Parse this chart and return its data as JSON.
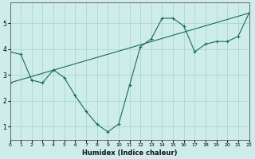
{
  "xlabel": "Humidex (Indice chaleur)",
  "bg_color": "#ceecea",
  "line_color": "#1a6b5a",
  "grid_color": "#aad8d2",
  "line1_x": [
    0,
    1,
    2,
    3,
    4,
    5,
    6,
    7,
    8,
    9,
    10,
    11,
    12,
    13,
    14,
    15,
    16,
    17,
    18,
    19,
    20,
    21,
    22
  ],
  "line1_y": [
    3.9,
    3.8,
    2.8,
    2.7,
    3.2,
    2.9,
    2.2,
    1.6,
    1.1,
    0.8,
    1.1,
    2.6,
    4.1,
    4.4,
    5.2,
    5.2,
    4.9,
    3.9,
    4.2,
    4.3,
    4.3,
    4.5,
    5.4
  ],
  "line2_x": [
    0,
    22
  ],
  "line2_y": [
    2.7,
    5.4
  ],
  "xlim": [
    0,
    22
  ],
  "ylim": [
    0.5,
    5.8
  ],
  "yticks": [
    1,
    2,
    3,
    4,
    5
  ],
  "xticks": [
    0,
    1,
    2,
    3,
    4,
    5,
    6,
    7,
    8,
    9,
    10,
    11,
    12,
    13,
    14,
    15,
    16,
    17,
    18,
    19,
    20,
    21,
    22
  ]
}
